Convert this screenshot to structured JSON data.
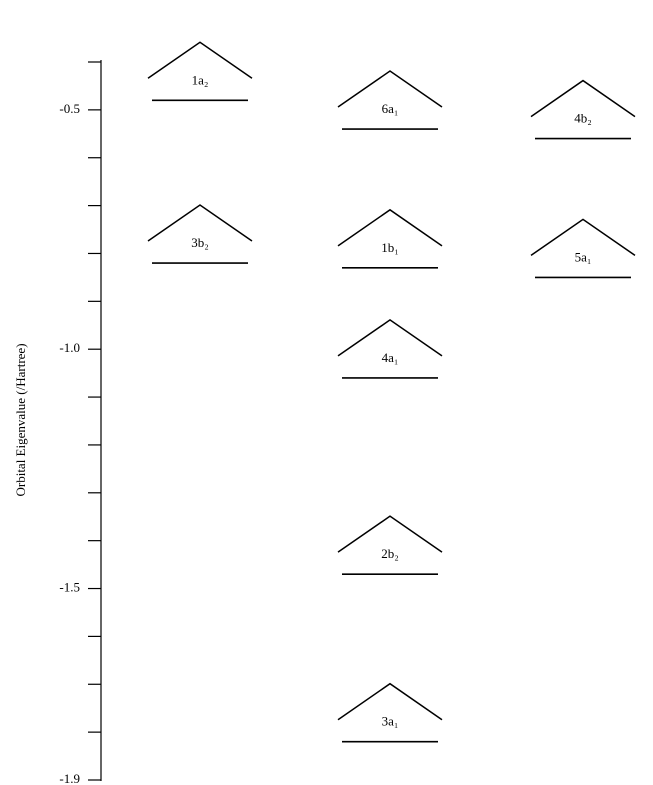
{
  "chart_data": {
    "type": "levels",
    "y_label": "Orbital Eigenvalue (/Hartree)",
    "categories": [
      "1a₂",
      "6a₁",
      "4b₂",
      "3b₂",
      "1b₁",
      "5a₁",
      "4a₁",
      "2b₂",
      "3a₁"
    ],
    "values": [
      -0.48,
      -0.54,
      -0.56,
      -0.82,
      -0.83,
      -0.85,
      -1.06,
      -1.47,
      -1.82
    ],
    "ylim": [
      -1.9,
      -0.4
    ],
    "yticks": [
      -0.5,
      {
        "value": -1.0,
        "label": "-1.0"
      },
      -1.5,
      -1.9
    ],
    "minor_yticks": [
      -0.4,
      -0.6,
      -0.7,
      -0.8,
      -0.9,
      -1.1,
      -1.2,
      -1.3,
      -1.4,
      -1.6,
      -1.7,
      -1.8
    ],
    "color": "#000000"
  }
}
